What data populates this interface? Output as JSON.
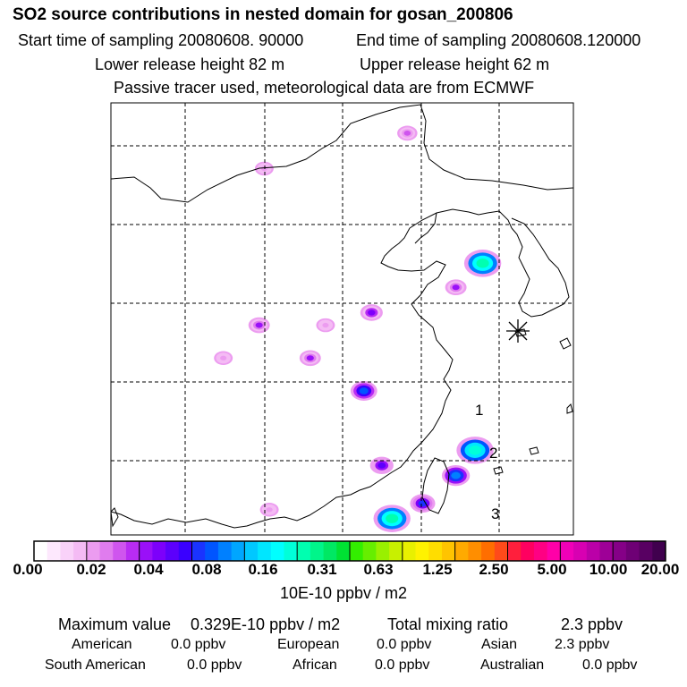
{
  "header": {
    "title": "SO2 source contributions in nested domain for gosan_200806",
    "start_label": "Start time of sampling 20080608. 90000",
    "end_label": "End time of sampling 20080608.120000",
    "lower_label": "Lower release height   82 m",
    "upper_label": "Upper release height   62 m",
    "tracer_label": "Passive tracer used, meteorological data are from ECMWF"
  },
  "chart_data": {
    "type": "heatmap",
    "title": "SO2 source contributions in nested domain for gosan_200806",
    "colorbar": {
      "ticks": [
        "0.00",
        "0.02",
        "0.04",
        "0.08",
        "0.16",
        "0.31",
        "0.63",
        "1.25",
        "2.50",
        "5.00",
        "10.00",
        "20.00"
      ],
      "units": "10E-10 ppbv / m2",
      "colors": [
        [
          "#ffffff",
          "#fde8fd",
          "#f9d2f9",
          "#f4bbf4"
        ],
        [
          "#ec9cf0",
          "#e07cee",
          "#cf55ee",
          "#b82cf3"
        ],
        [
          "#9a10f8",
          "#7d00fb",
          "#5c00fc",
          "#3a00ff"
        ],
        [
          "#1a33ff",
          "#0055ff",
          "#0080ff",
          "#00a6ff"
        ],
        [
          "#00c8ff",
          "#00e6ff",
          "#00ffff",
          "#00ffd9"
        ],
        [
          "#00ffb0",
          "#00f58a",
          "#00e863",
          "#00e233"
        ],
        [
          "#33ee00",
          "#66ee00",
          "#99f000",
          "#c8f000"
        ],
        [
          "#e8f000",
          "#fff200",
          "#ffdd00",
          "#ffc400"
        ],
        [
          "#ffaa00",
          "#ff8e00",
          "#ff6e00",
          "#ff4a1a"
        ],
        [
          "#ff1f3c",
          "#ff0060",
          "#ff0083",
          "#ff00a8"
        ],
        [
          "#f000b8",
          "#d800b2",
          "#bb00a8",
          "#9e0097"
        ],
        [
          "#850087",
          "#6e0075",
          "#580062",
          "#40004e"
        ]
      ]
    },
    "receptor_markers": [
      "1",
      "2",
      "3"
    ],
    "plumes": [
      {
        "value": 0.33,
        "lon": 124.55,
        "lat": 33.55
      },
      {
        "value": 0.33,
        "lon": 121.0,
        "lat": 23.45
      },
      {
        "value": 0.3,
        "lon": 124.25,
        "lat": 26.15
      },
      {
        "value": 0.12,
        "lon": 123.5,
        "lat": 25.15
      },
      {
        "value": 0.08,
        "lon": 122.2,
        "lat": 24.05
      },
      {
        "value": 0.1,
        "lon": 119.9,
        "lat": 28.5
      },
      {
        "value": 0.06,
        "lon": 120.6,
        "lat": 25.55
      },
      {
        "value": 0.05,
        "lon": 120.2,
        "lat": 31.6
      },
      {
        "value": 0.04,
        "lon": 123.5,
        "lat": 32.6
      },
      {
        "value": 0.04,
        "lon": 115.8,
        "lat": 31.1
      },
      {
        "value": 0.04,
        "lon": 117.8,
        "lat": 29.8
      },
      {
        "value": 0.03,
        "lon": 121.6,
        "lat": 38.7
      },
      {
        "value": 0.02,
        "lon": 116.0,
        "lat": 37.3
      },
      {
        "value": 0.02,
        "lon": 118.4,
        "lat": 31.1
      },
      {
        "value": 0.02,
        "lon": 116.2,
        "lat": 23.8
      },
      {
        "value": 0.02,
        "lon": 114.4,
        "lat": 29.8
      }
    ],
    "max_value": "0.329E-10 ppbv / m2",
    "total_mixing_ratio": "2.3 ppbv"
  },
  "summary": {
    "max_label": "Maximum value",
    "max_value": "0.329E-10 ppbv / m2",
    "total_label": "Total mixing ratio",
    "total_value": "2.3 ppbv",
    "american_label": "American",
    "american_value": "0.0 ppbv",
    "european_label": "European",
    "european_value": "0.0 ppbv",
    "asian_label": "Asian",
    "asian_value": "2.3 ppbv",
    "south_american_label": "South American",
    "south_american_value": "0.0 ppbv",
    "african_label": "African",
    "african_value": "0.0 ppbv",
    "australian_label": "Australian",
    "australian_value": "0.0 ppbv"
  }
}
